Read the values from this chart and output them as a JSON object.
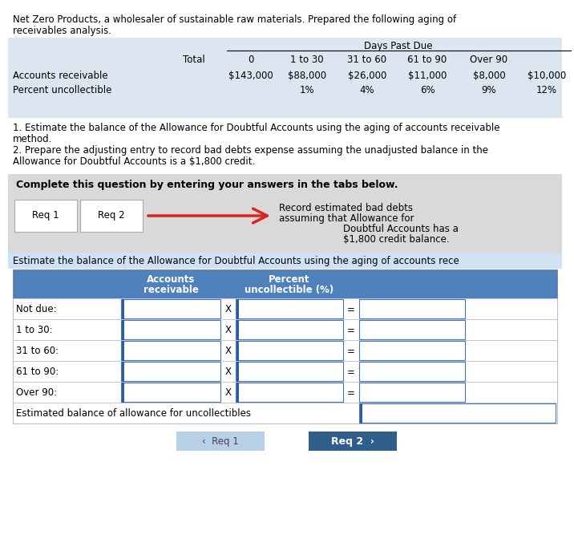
{
  "header_text_line1": "Net Zero Products, a wholesaler of sustainable raw materials. Prepared the following aging of",
  "header_text_line2": "receivables analysis.",
  "table1_bg": "#dce6f1",
  "table1_cols": [
    "Total",
    "0",
    "1 to 30",
    "31 to 60",
    "61 to 90",
    "Over 90"
  ],
  "table1_row1_label": "Accounts receivable",
  "table1_row1_vals": [
    "$143,000",
    "$88,000",
    "$26,000",
    "$11,000",
    "$8,000",
    "$10,000"
  ],
  "table1_row2_label": "Percent uncollectible",
  "table1_row2_vals": [
    "",
    "1%",
    "4%",
    "6%",
    "9%",
    "12%"
  ],
  "instructions": [
    "1. Estimate the balance of the Allowance for Doubtful Accounts using the aging of accounts receivable",
    "method.",
    "2. Prepare the adjusting entry to record bad debts expense assuming the unadjusted balance in the",
    "Allowance for Doubtful Accounts is a $1,800 credit."
  ],
  "complete_box_bg": "#d9d9d9",
  "complete_text": "Complete this question by entering your answers in the tabs below.",
  "arrow_color": "#dd2222",
  "arrow_label_lines": [
    "Record estimated bad debts",
    "assuming that Allowance for",
    "Doubtful Accounts has a",
    "$1,800 credit balance."
  ],
  "req1_label": "Req 1",
  "req2_label": "Req 2",
  "blue_bar_text": "Estimate the balance of the Allowance for Doubtful Accounts using the aging of accounts rece",
  "blue_bar_bg": "#cfe2f3",
  "table2_header_bg": "#4f81bd",
  "table2_header_color": "#ffffff",
  "table2_col1_line1": "Accounts",
  "table2_col1_line2": "receivable",
  "table2_col2_line1": "Percent",
  "table2_col2_line2": "uncollectible (%)",
  "table2_rows": [
    "Not due:",
    "1 to 30:",
    "31 to 60:",
    "61 to 90:",
    "Over 90:"
  ],
  "table2_footer": "Estimated balance of allowance for uncollectibles",
  "btn_req1_bg": "#b8cfe8",
  "btn_req2_bg": "#2e5f8a",
  "btn_req1_color": "#444444",
  "btn_req2_color": "#ffffff",
  "bg_color": "#ffffff",
  "cell_border_color": "#4472c4",
  "input_indicator_color": "#1f5496",
  "col_border_color": "#888888"
}
